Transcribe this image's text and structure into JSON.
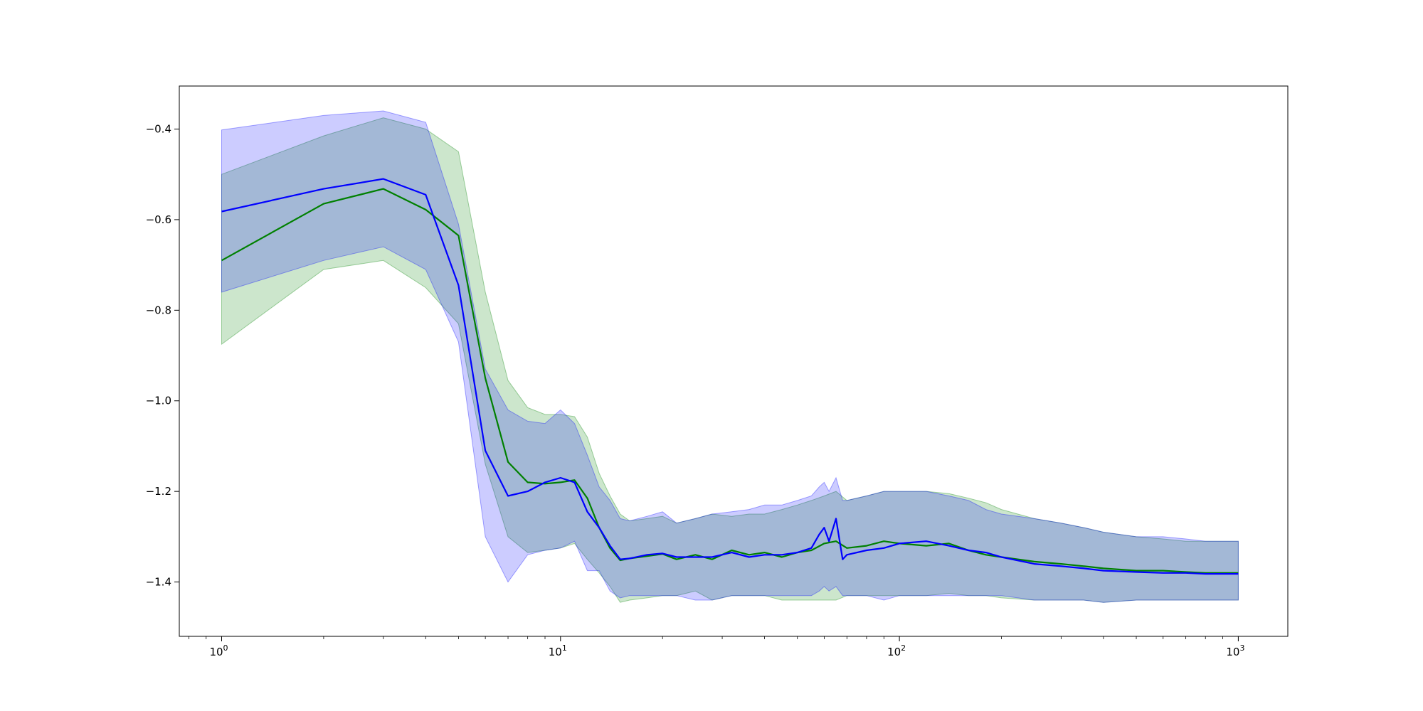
{
  "chart_data": {
    "type": "line",
    "title": "",
    "xlabel": "",
    "ylabel": "",
    "xscale": "log",
    "xlim": [
      0.75,
      1400
    ],
    "ylim": [
      -1.52,
      -0.305
    ],
    "grid": false,
    "legend": "none",
    "x_ticks": [
      {
        "value": 1,
        "base": "10",
        "exp": "0"
      },
      {
        "value": 10,
        "base": "10",
        "exp": "1"
      },
      {
        "value": 100,
        "base": "10",
        "exp": "2"
      },
      {
        "value": 1000,
        "base": "10",
        "exp": "3"
      }
    ],
    "y_ticks": [
      {
        "value": -0.4,
        "label": "−0.4"
      },
      {
        "value": -0.6,
        "label": "−0.6"
      },
      {
        "value": -0.8,
        "label": "−0.8"
      },
      {
        "value": -1.0,
        "label": "−1.0"
      },
      {
        "value": -1.2,
        "label": "−1.2"
      },
      {
        "value": -1.4,
        "label": "−1.4"
      }
    ],
    "series": [
      {
        "color": "#008000",
        "band_color": "#008000",
        "band_opacity": 0.2,
        "x": [
          1,
          2,
          3,
          4,
          5,
          6,
          7,
          8,
          9,
          10,
          11,
          12,
          13,
          14,
          15,
          16,
          18,
          20,
          22,
          25,
          28,
          32,
          36,
          40,
          45,
          50,
          55,
          60,
          65,
          70,
          80,
          90,
          100,
          120,
          140,
          160,
          180,
          200,
          250,
          300,
          350,
          400,
          500,
          600,
          700,
          800,
          900,
          1000
        ],
        "mean": [
          -0.69,
          -0.565,
          -0.532,
          -0.578,
          -0.635,
          -0.95,
          -1.135,
          -1.18,
          -1.183,
          -1.18,
          -1.175,
          -1.215,
          -1.28,
          -1.325,
          -1.352,
          -1.348,
          -1.343,
          -1.338,
          -1.35,
          -1.34,
          -1.35,
          -1.33,
          -1.34,
          -1.335,
          -1.345,
          -1.335,
          -1.33,
          -1.315,
          -1.31,
          -1.325,
          -1.32,
          -1.31,
          -1.315,
          -1.32,
          -1.315,
          -1.33,
          -1.34,
          -1.345,
          -1.355,
          -1.36,
          -1.365,
          -1.37,
          -1.375,
          -1.375,
          -1.378,
          -1.38,
          -1.38,
          -1.38
        ],
        "lower": [
          -0.875,
          -0.71,
          -0.69,
          -0.75,
          -0.83,
          -1.14,
          -1.3,
          -1.335,
          -1.33,
          -1.325,
          -1.315,
          -1.35,
          -1.38,
          -1.41,
          -1.445,
          -1.44,
          -1.435,
          -1.43,
          -1.43,
          -1.42,
          -1.44,
          -1.43,
          -1.43,
          -1.43,
          -1.44,
          -1.44,
          -1.44,
          -1.44,
          -1.44,
          -1.43,
          -1.43,
          -1.43,
          -1.43,
          -1.43,
          -1.425,
          -1.43,
          -1.43,
          -1.435,
          -1.44,
          -1.44,
          -1.44,
          -1.445,
          -1.44,
          -1.44,
          -1.44,
          -1.44,
          -1.44,
          -1.44
        ],
        "upper": [
          -0.5,
          -0.415,
          -0.375,
          -0.4,
          -0.45,
          -0.76,
          -0.955,
          -1.015,
          -1.03,
          -1.03,
          -1.035,
          -1.08,
          -1.16,
          -1.21,
          -1.25,
          -1.265,
          -1.26,
          -1.255,
          -1.27,
          -1.26,
          -1.25,
          -1.255,
          -1.25,
          -1.25,
          -1.24,
          -1.23,
          -1.22,
          -1.21,
          -1.2,
          -1.22,
          -1.21,
          -1.2,
          -1.2,
          -1.2,
          -1.205,
          -1.215,
          -1.225,
          -1.24,
          -1.26,
          -1.27,
          -1.28,
          -1.29,
          -1.3,
          -1.305,
          -1.31,
          -1.31,
          -1.31,
          -1.31
        ]
      },
      {
        "color": "#0000ff",
        "band_color": "#0000ff",
        "band_opacity": 0.2,
        "x": [
          1,
          2,
          3,
          4,
          5,
          6,
          7,
          8,
          9,
          10,
          11,
          12,
          13,
          14,
          15,
          16,
          18,
          20,
          22,
          25,
          28,
          32,
          36,
          40,
          45,
          50,
          55,
          58,
          60,
          62,
          65,
          68,
          70,
          80,
          90,
          100,
          120,
          140,
          160,
          180,
          200,
          250,
          300,
          350,
          400,
          500,
          600,
          700,
          800,
          900,
          1000
        ],
        "mean": [
          -0.582,
          -0.532,
          -0.51,
          -0.545,
          -0.745,
          -1.11,
          -1.21,
          -1.2,
          -1.18,
          -1.17,
          -1.18,
          -1.245,
          -1.28,
          -1.32,
          -1.35,
          -1.348,
          -1.34,
          -1.337,
          -1.345,
          -1.345,
          -1.345,
          -1.335,
          -1.345,
          -1.34,
          -1.34,
          -1.335,
          -1.325,
          -1.295,
          -1.28,
          -1.31,
          -1.26,
          -1.35,
          -1.34,
          -1.33,
          -1.325,
          -1.315,
          -1.31,
          -1.32,
          -1.33,
          -1.335,
          -1.345,
          -1.36,
          -1.365,
          -1.37,
          -1.375,
          -1.378,
          -1.38,
          -1.38,
          -1.382,
          -1.382,
          -1.382
        ],
        "lower": [
          -0.76,
          -0.69,
          -0.66,
          -0.71,
          -0.87,
          -1.3,
          -1.4,
          -1.34,
          -1.33,
          -1.325,
          -1.31,
          -1.375,
          -1.375,
          -1.42,
          -1.435,
          -1.43,
          -1.43,
          -1.43,
          -1.43,
          -1.44,
          -1.44,
          -1.43,
          -1.43,
          -1.43,
          -1.43,
          -1.43,
          -1.43,
          -1.42,
          -1.41,
          -1.42,
          -1.41,
          -1.43,
          -1.43,
          -1.43,
          -1.44,
          -1.43,
          -1.43,
          -1.43,
          -1.43,
          -1.43,
          -1.43,
          -1.44,
          -1.44,
          -1.44,
          -1.445,
          -1.44,
          -1.44,
          -1.44,
          -1.44,
          -1.44,
          -1.44
        ],
        "upper": [
          -0.402,
          -0.37,
          -0.36,
          -0.385,
          -0.61,
          -0.93,
          -1.02,
          -1.045,
          -1.05,
          -1.02,
          -1.05,
          -1.12,
          -1.19,
          -1.22,
          -1.26,
          -1.265,
          -1.255,
          -1.245,
          -1.27,
          -1.26,
          -1.25,
          -1.245,
          -1.24,
          -1.23,
          -1.23,
          -1.22,
          -1.21,
          -1.19,
          -1.18,
          -1.2,
          -1.17,
          -1.22,
          -1.22,
          -1.21,
          -1.2,
          -1.2,
          -1.2,
          -1.21,
          -1.22,
          -1.24,
          -1.25,
          -1.26,
          -1.27,
          -1.28,
          -1.29,
          -1.3,
          -1.3,
          -1.305,
          -1.31,
          -1.31,
          -1.31
        ]
      }
    ]
  }
}
